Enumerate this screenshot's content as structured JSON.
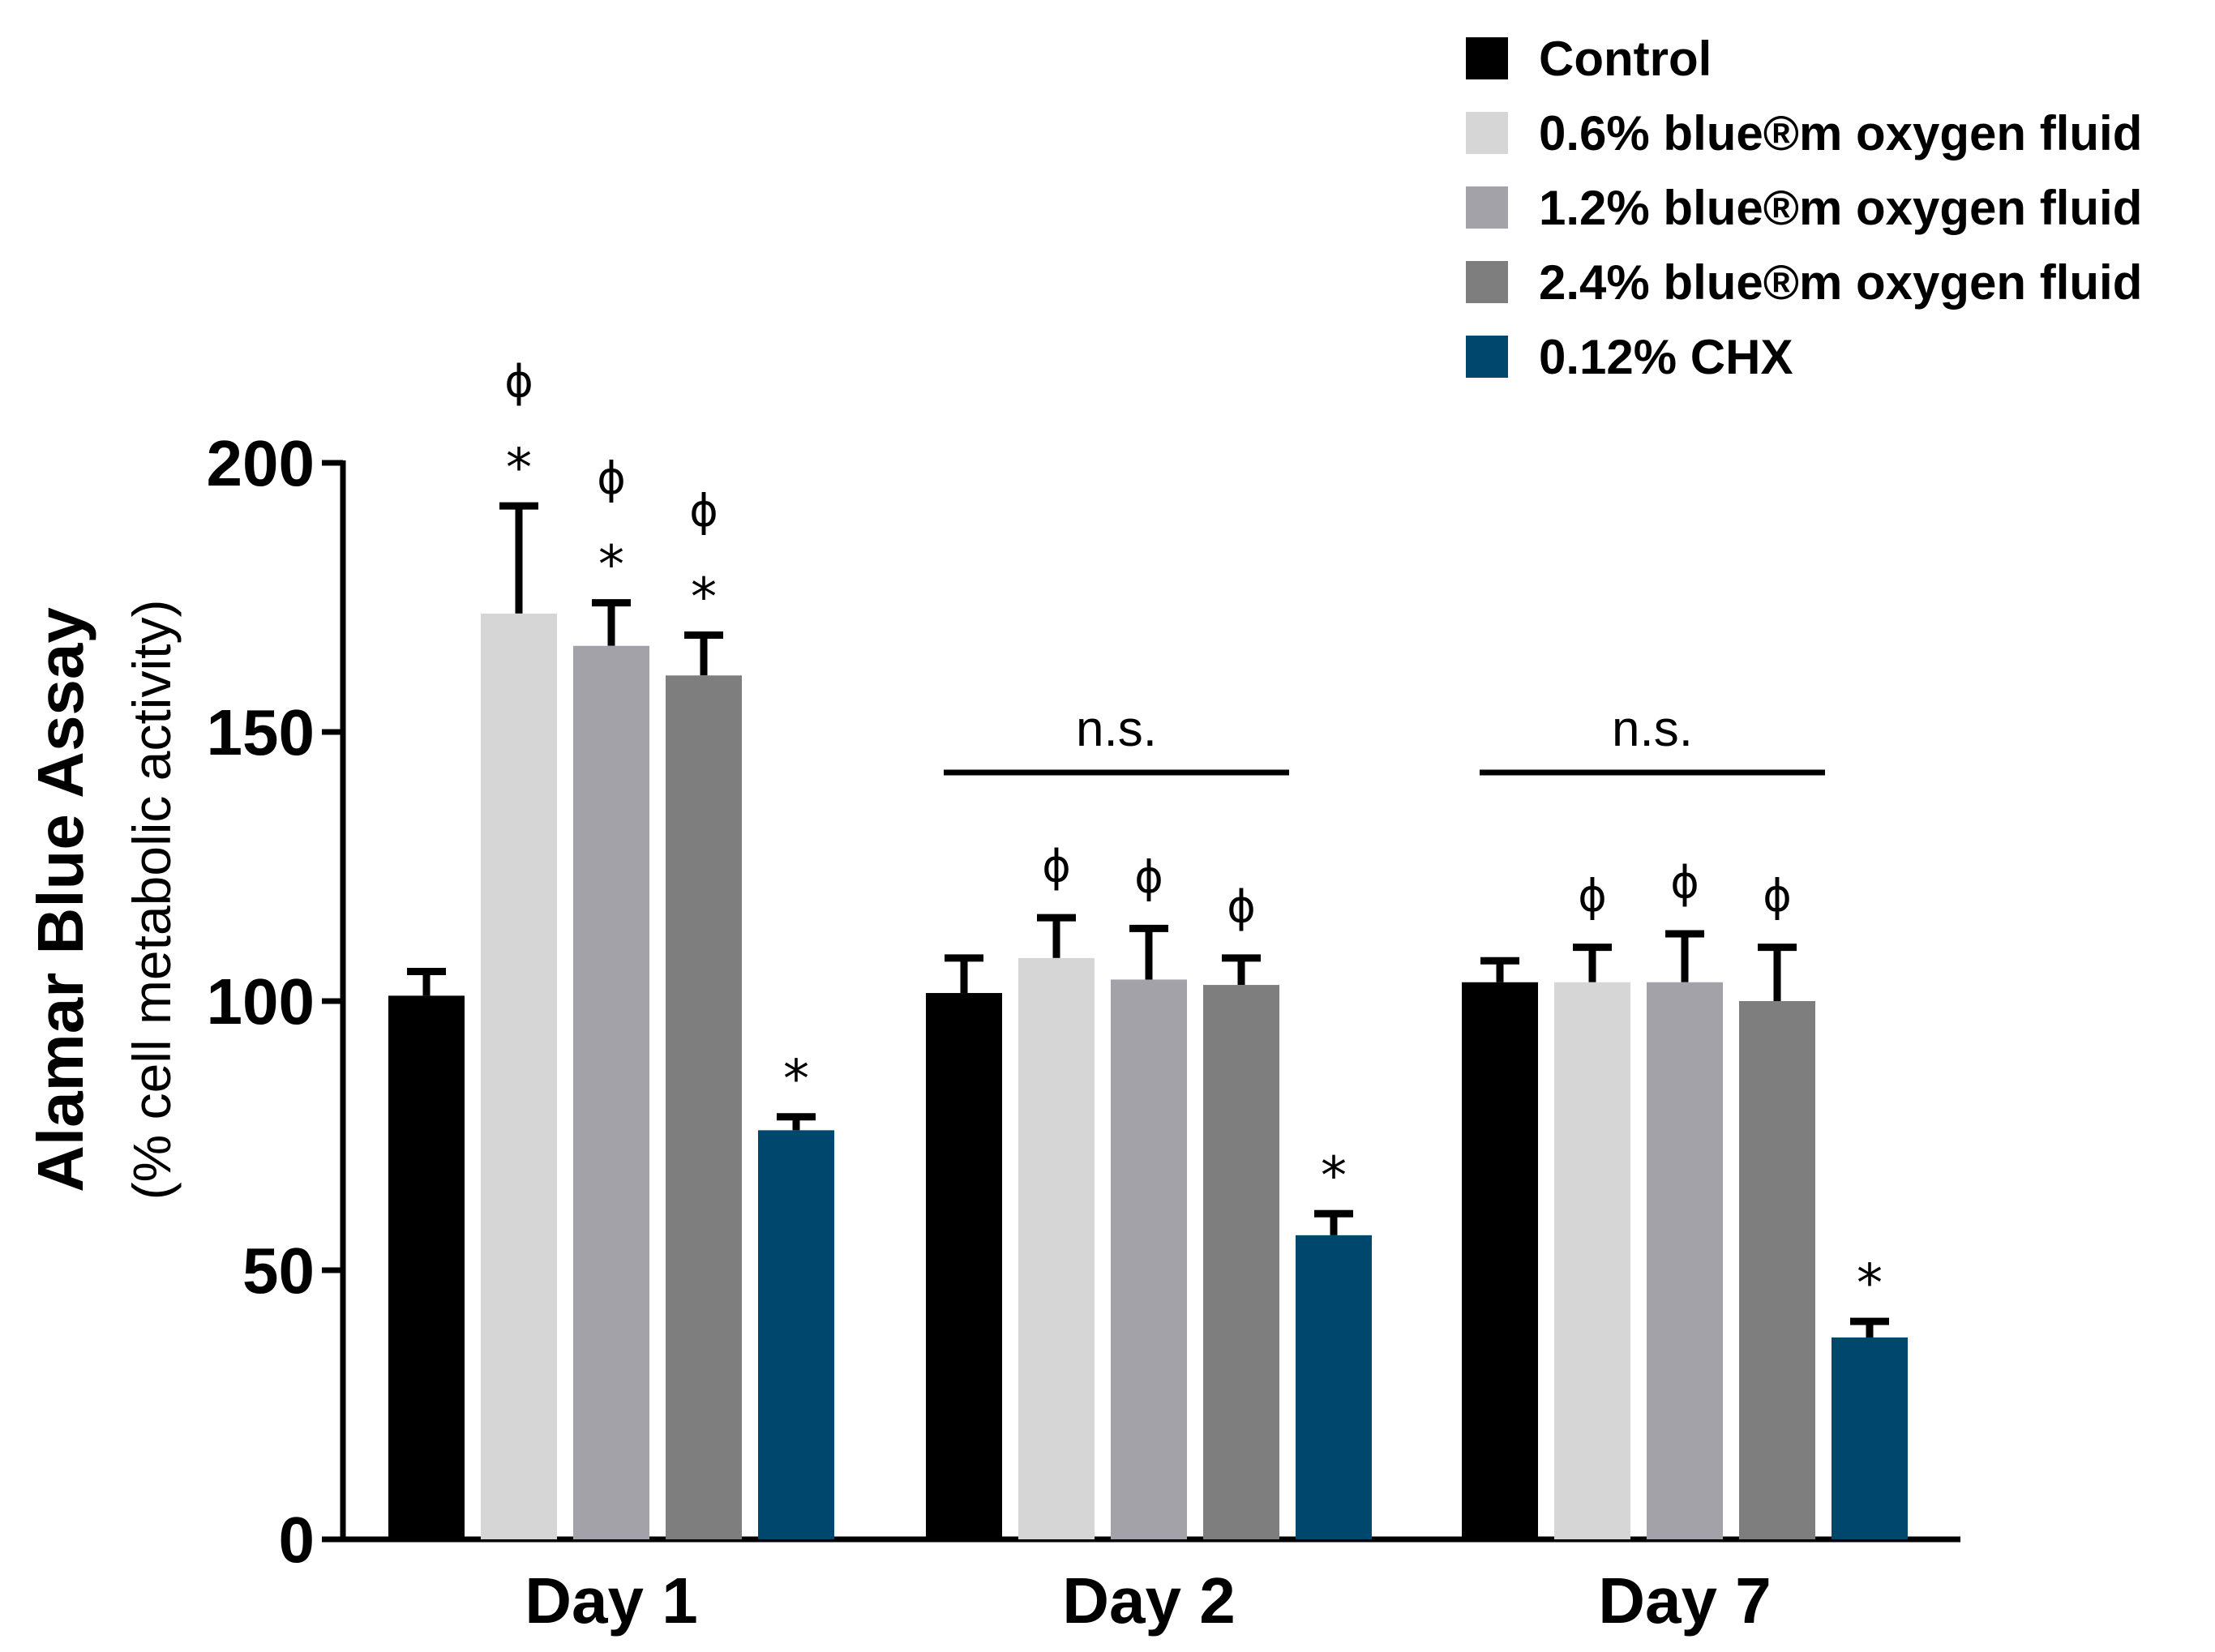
{
  "chart_data": {
    "type": "bar",
    "title": "",
    "ylabel": "Alamar Blue Assay",
    "ylabel_sub": "(% cell metabolic activity)",
    "xlabel": "",
    "ylim": [
      0,
      200
    ],
    "yticks": [
      0,
      50,
      100,
      150,
      200
    ],
    "categories": [
      "Day 1",
      "Day 2",
      "Day 7"
    ],
    "series": [
      {
        "name": "Control",
        "color": "#000000",
        "values": [
          101,
          101.5,
          103.5
        ],
        "errors": [
          4.5,
          6.5,
          4
        ]
      },
      {
        "name": "0.6% blue®m oxygen fluid",
        "color": "#d6d6d6",
        "values": [
          172,
          108,
          103.5
        ],
        "errors": [
          20,
          7.5,
          6.5
        ]
      },
      {
        "name": "1.2% blue®m oxygen fluid",
        "color": "#a2a2a8",
        "values": [
          166,
          104,
          103.5
        ],
        "errors": [
          8,
          9.5,
          9
        ]
      },
      {
        "name": "2.4% blue®m oxygen fluid",
        "color": "#7e7e7e",
        "values": [
          160.5,
          103,
          100
        ],
        "errors": [
          7.5,
          5,
          10
        ]
      },
      {
        "name": "0.12% CHX",
        "color": "#00476e",
        "values": [
          76,
          56.5,
          37.5
        ],
        "errors": [
          2.5,
          4,
          3
        ]
      }
    ],
    "annotations": {
      "asterisk": "*",
      "phi": "ϕ",
      "ns_label": "n.s.",
      "asterisk_marks": [
        [
          1,
          0
        ],
        [
          2,
          0
        ],
        [
          3,
          0
        ],
        [
          4,
          0
        ],
        [
          4,
          1
        ],
        [
          4,
          2
        ]
      ],
      "phi_marks": [
        [
          1,
          0
        ],
        [
          2,
          0
        ],
        [
          3,
          0
        ],
        [
          1,
          1
        ],
        [
          2,
          1
        ],
        [
          3,
          1
        ],
        [
          1,
          2
        ],
        [
          2,
          2
        ],
        [
          3,
          2
        ]
      ],
      "ns_groups": [
        1,
        2
      ]
    },
    "legend_position": "top-right"
  }
}
